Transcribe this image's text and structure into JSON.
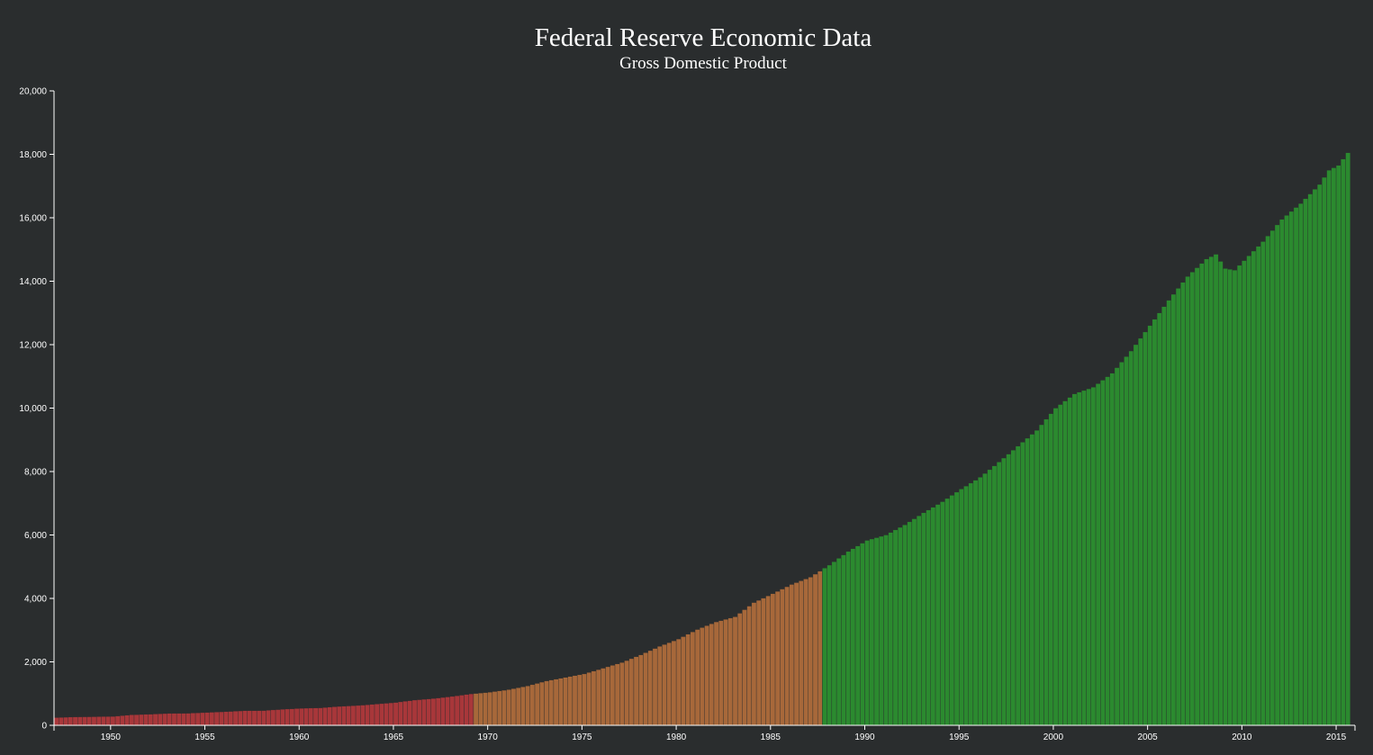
{
  "chart_data": {
    "type": "bar",
    "title": "Federal Reserve Economic Data",
    "subtitle": "Gross Domestic Product",
    "xlabel": "",
    "ylabel": "",
    "frequency": "quarterly",
    "start": 1947.0,
    "end": 2015.5,
    "ylim": [
      0,
      20000
    ],
    "y_ticks": [
      0,
      2000,
      4000,
      6000,
      8000,
      10000,
      12000,
      14000,
      16000,
      18000,
      20000
    ],
    "y_tick_labels": [
      "0",
      "2,000",
      "4,000",
      "6,000",
      "8,000",
      "10,000",
      "12,000",
      "14,000",
      "16,000",
      "18,000",
      "20,000"
    ],
    "x_ticks": [
      1950,
      1955,
      1960,
      1965,
      1970,
      1975,
      1980,
      1985,
      1990,
      1995,
      2000,
      2005,
      2010,
      2015
    ],
    "x_tick_labels": [
      "1950",
      "1955",
      "1960",
      "1965",
      "1970",
      "1975",
      "1980",
      "1985",
      "1990",
      "1995",
      "2000",
      "2005",
      "2010",
      "2015"
    ],
    "anchors": [
      [
        1947.0,
        243
      ],
      [
        1948.0,
        265
      ],
      [
        1949.0,
        270
      ],
      [
        1950.0,
        280
      ],
      [
        1951.0,
        330
      ],
      [
        1952.0,
        350
      ],
      [
        1953.0,
        375
      ],
      [
        1954.0,
        380
      ],
      [
        1955.0,
        405
      ],
      [
        1956.0,
        430
      ],
      [
        1957.0,
        460
      ],
      [
        1958.0,
        465
      ],
      [
        1959.0,
        505
      ],
      [
        1960.0,
        535
      ],
      [
        1961.0,
        550
      ],
      [
        1962.0,
        595
      ],
      [
        1963.0,
        625
      ],
      [
        1964.0,
        670
      ],
      [
        1965.0,
        720
      ],
      [
        1966.0,
        795
      ],
      [
        1967.0,
        845
      ],
      [
        1968.0,
        910
      ],
      [
        1969.0,
        990
      ],
      [
        1970.0,
        1045
      ],
      [
        1971.0,
        1125
      ],
      [
        1972.0,
        1240
      ],
      [
        1973.0,
        1400
      ],
      [
        1974.0,
        1510
      ],
      [
        1975.0,
        1620
      ],
      [
        1976.0,
        1800
      ],
      [
        1977.0,
        1980
      ],
      [
        1978.0,
        2220
      ],
      [
        1979.0,
        2490
      ],
      [
        1980.0,
        2720
      ],
      [
        1981.0,
        3020
      ],
      [
        1982.0,
        3260
      ],
      [
        1983.0,
        3420
      ],
      [
        1984.0,
        3870
      ],
      [
        1985.0,
        4150
      ],
      [
        1986.0,
        4440
      ],
      [
        1987.0,
        4670
      ],
      [
        1988.0,
        5050
      ],
      [
        1989.0,
        5480
      ],
      [
        1990.0,
        5830
      ],
      [
        1991.0,
        6000
      ],
      [
        1992.0,
        6320
      ],
      [
        1993.0,
        6700
      ],
      [
        1994.0,
        7050
      ],
      [
        1995.0,
        7450
      ],
      [
        1996.0,
        7820
      ],
      [
        1997.0,
        8300
      ],
      [
        1998.0,
        8800
      ],
      [
        1999.0,
        9300
      ],
      [
        2000.0,
        10000
      ],
      [
        2001.0,
        10450
      ],
      [
        2002.0,
        10660
      ],
      [
        2003.0,
        11100
      ],
      [
        2004.0,
        11800
      ],
      [
        2005.0,
        12600
      ],
      [
        2006.0,
        13400
      ],
      [
        2007.0,
        14150
      ],
      [
        2008.0,
        14700
      ],
      [
        2008.5,
        14850
      ],
      [
        2009.0,
        14400
      ],
      [
        2009.5,
        14350
      ],
      [
        2010.0,
        14650
      ],
      [
        2011.0,
        15250
      ],
      [
        2012.0,
        15950
      ],
      [
        2013.0,
        16450
      ],
      [
        2014.0,
        17050
      ],
      [
        2014.5,
        17500
      ],
      [
        2015.0,
        17650
      ],
      [
        2015.5,
        18050
      ]
    ],
    "eras": [
      {
        "from": 1947.0,
        "to": 1969.25,
        "color": "#a8373a"
      },
      {
        "from": 1969.25,
        "to": 1987.75,
        "color": "#a7683a"
      },
      {
        "from": 1987.75,
        "to": 2016.0,
        "color": "#2b8a2f"
      }
    ]
  },
  "colors": {
    "background": "#2a2d2e",
    "axis": "#ffffff",
    "text": "#ffffff"
  }
}
